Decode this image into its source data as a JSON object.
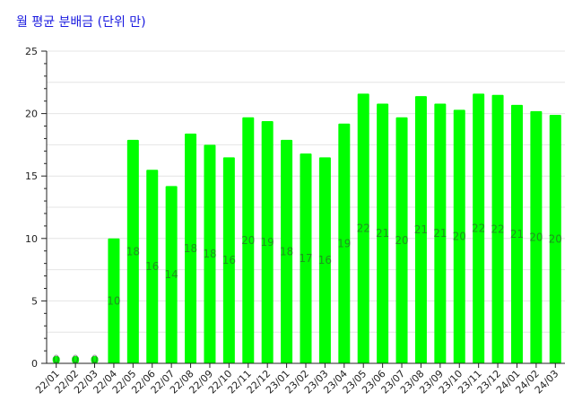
{
  "chart_data": {
    "type": "bar",
    "title": "월 평균 분배금 (단위 만)",
    "xlabel": "",
    "ylabel": "",
    "ylim": [
      0,
      25
    ],
    "yticks": [
      0,
      5,
      10,
      15,
      20,
      25
    ],
    "grid": true,
    "legend": "none",
    "categories": [
      "22/01",
      "22/02",
      "22/03",
      "22/04",
      "22/05",
      "22/06",
      "22/07",
      "22/08",
      "22/09",
      "22/10",
      "22/11",
      "22/12",
      "23/01",
      "23/02",
      "23/03",
      "23/04",
      "23/05",
      "23/06",
      "23/07",
      "23/08",
      "23/09",
      "23/10",
      "23/11",
      "23/12",
      "24/01",
      "24/02",
      "24/03"
    ],
    "values": [
      0,
      0,
      0,
      10,
      17.9,
      15.5,
      14.2,
      18.4,
      17.5,
      16.5,
      19.7,
      19.4,
      17.9,
      16.8,
      16.5,
      19.2,
      21.6,
      20.8,
      19.7,
      21.4,
      20.8,
      20.3,
      21.6,
      21.5,
      20.7,
      20.2,
      19.9
    ],
    "data_labels": [
      "0",
      "0",
      "0",
      "10",
      "18",
      "16",
      "14",
      "18",
      "18",
      "16",
      "20",
      "19",
      "18",
      "17",
      "16",
      "19",
      "22",
      "21",
      "20",
      "21",
      "21",
      "20",
      "22",
      "22",
      "21",
      "20",
      "20"
    ],
    "bar_color": "#00ff00",
    "title_color": "#1a1adf"
  }
}
